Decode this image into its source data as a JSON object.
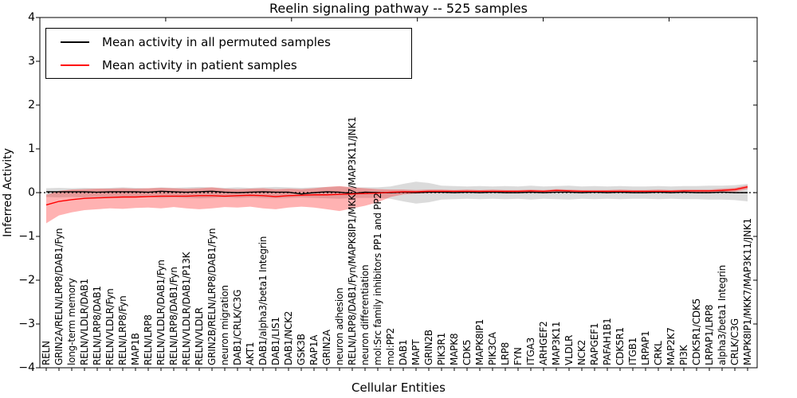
{
  "figure": {
    "title": "Reelin signaling pathway -- 525 samples",
    "xlabel": "Cellular Entities",
    "ylabel": "Inferred Activity"
  },
  "legend": {
    "entries": [
      {
        "label": "Mean activity in all permuted samples",
        "color": "#000000"
      },
      {
        "label": "Mean activity in patient samples",
        "color": "#ff0000"
      }
    ]
  },
  "chart_data": {
    "type": "line",
    "title": "Reelin signaling pathway -- 525 samples",
    "xlabel": "Cellular Entities",
    "ylabel": "Inferred Activity",
    "ylim": [
      -4,
      4
    ],
    "ytick_labels": [
      "4",
      "3",
      "2",
      "1",
      "0",
      "−1",
      "−2",
      "−3",
      "−4"
    ],
    "ytick_values": [
      4,
      3,
      2,
      1,
      0,
      -1,
      -2,
      -3,
      -4
    ],
    "grid": false,
    "legend_position": "upper left",
    "zero_line": true,
    "categories": [
      "RELN",
      "GRIN2A/RELN/LRP8/DAB1/Fyn",
      "long-term memory",
      "RELN/VLDLR/DAB1",
      "RELN/LRP8/DAB1",
      "RELN/VLDLR/Fyn",
      "RELN/LRP8/Fyn",
      "MAP1B",
      "RELN/LRP8",
      "RELN/VLDLR/DAB1/Fyn",
      "RELN/LRP8/DAB1/Fyn",
      "RELN/VLDLR/DAB1/P13K",
      "RELN/VLDLR",
      "GRIN2B/RELN/LRP8/DAB1/Fyn",
      "neuron migration",
      "DAB1/CRLK/C3G",
      "AKT1",
      "DAB1/alpha3/beta1 Integrin",
      "DAB1/LIS1",
      "DAB1/NCK2",
      "GSK3B",
      "RAP1A",
      "GRIN2A",
      "neuron adhesion",
      "RELN/LRP8/DAB1/Fyn/MAPK8IP1/MKK7/MAP3K11/JNK1",
      "neuron differentiation",
      "mol:Src family inhibitors PP1 and PP2",
      "mol:PP2",
      "DAB1",
      "MAPT",
      "GRIN2B",
      "PIK3R1",
      "MAPK8",
      "CDK5",
      "MAPK8IP1",
      "PIK3CA",
      "LRP8",
      "FYN",
      "ITGA3",
      "ARHGEF2",
      "MAP3K11",
      "VLDLR",
      "NCK2",
      "RAPGEF1",
      "PAFAH1B1",
      "CDK5R1",
      "ITGB1",
      "LRPAP1",
      "CRKL",
      "MAP2K7",
      "PI3K",
      "CDK5R1/CDK5",
      "LRPAP1/LRP8",
      "alpha3/beta1 Integrin",
      "CRLK/C3G",
      "MAPK8IP1/MKK7/MAP3K11/JNK1"
    ],
    "series": [
      {
        "name": "Mean activity in all permuted samples",
        "color": "#000000",
        "band_color": "rgba(125,125,125,0.28)",
        "values": [
          0.02,
          0.02,
          0.02,
          0.02,
          0.01,
          0.02,
          0.02,
          0.02,
          0.01,
          0.03,
          0.02,
          0.01,
          0.02,
          0.03,
          0.01,
          0.0,
          0.01,
          0.02,
          0.01,
          0.01,
          -0.03,
          0.0,
          0.02,
          0.01,
          -0.02,
          0.01,
          0.0,
          0.0,
          0.01,
          0.0,
          0.01,
          0.01,
          0.0,
          0.01,
          0.0,
          0.01,
          0.0,
          0.0,
          0.01,
          0.0,
          0.01,
          0.01,
          0.0,
          0.01,
          0.0,
          0.01,
          0.0,
          0.0,
          0.01,
          0.0,
          0.01,
          0.0,
          0.0,
          0.01,
          0.0,
          0.0
        ],
        "band_upper": [
          0.1,
          0.11,
          0.1,
          0.11,
          0.1,
          0.11,
          0.12,
          0.11,
          0.1,
          0.12,
          0.11,
          0.12,
          0.13,
          0.12,
          0.11,
          0.12,
          0.11,
          0.12,
          0.13,
          0.12,
          0.11,
          0.12,
          0.13,
          0.14,
          0.12,
          0.12,
          0.12,
          0.14,
          0.2,
          0.25,
          0.22,
          0.16,
          0.15,
          0.14,
          0.15,
          0.14,
          0.15,
          0.14,
          0.16,
          0.14,
          0.15,
          0.16,
          0.14,
          0.15,
          0.14,
          0.15,
          0.14,
          0.14,
          0.15,
          0.14,
          0.15,
          0.15,
          0.16,
          0.16,
          0.17,
          0.2
        ],
        "band_lower": [
          -0.1,
          -0.11,
          -0.1,
          -0.11,
          -0.1,
          -0.11,
          -0.12,
          -0.11,
          -0.1,
          -0.12,
          -0.11,
          -0.12,
          -0.13,
          -0.12,
          -0.11,
          -0.12,
          -0.11,
          -0.12,
          -0.13,
          -0.12,
          -0.11,
          -0.12,
          -0.13,
          -0.14,
          -0.12,
          -0.12,
          -0.12,
          -0.14,
          -0.2,
          -0.25,
          -0.22,
          -0.16,
          -0.15,
          -0.14,
          -0.15,
          -0.14,
          -0.15,
          -0.14,
          -0.16,
          -0.14,
          -0.15,
          -0.16,
          -0.14,
          -0.15,
          -0.14,
          -0.15,
          -0.14,
          -0.14,
          -0.15,
          -0.14,
          -0.15,
          -0.15,
          -0.16,
          -0.16,
          -0.17,
          -0.2
        ]
      },
      {
        "name": "Mean activity in patient samples",
        "color": "#ff0000",
        "band_color": "rgba(255,0,0,0.3)",
        "values": [
          -0.28,
          -0.2,
          -0.16,
          -0.13,
          -0.12,
          -0.11,
          -0.1,
          -0.1,
          -0.09,
          -0.08,
          -0.08,
          -0.08,
          -0.07,
          -0.07,
          -0.08,
          -0.07,
          -0.06,
          -0.07,
          -0.09,
          -0.07,
          -0.06,
          -0.05,
          -0.05,
          -0.04,
          -0.03,
          -0.02,
          -0.01,
          0.01,
          0.02,
          0.02,
          0.03,
          0.03,
          0.03,
          0.03,
          0.03,
          0.03,
          0.03,
          0.03,
          0.04,
          0.03,
          0.05,
          0.04,
          0.03,
          0.03,
          0.03,
          0.03,
          0.03,
          0.03,
          0.03,
          0.03,
          0.04,
          0.04,
          0.04,
          0.05,
          0.07,
          0.13
        ],
        "band_upper": [
          -0.05,
          0.04,
          0.07,
          0.08,
          0.09,
          0.09,
          0.1,
          0.09,
          0.1,
          0.11,
          0.1,
          0.09,
          0.1,
          0.12,
          0.09,
          0.08,
          0.09,
          0.1,
          0.08,
          0.09,
          0.08,
          0.1,
          0.13,
          0.15,
          0.12,
          0.1,
          0.08,
          0.07,
          0.07,
          0.06,
          0.07,
          0.07,
          0.06,
          0.07,
          0.06,
          0.07,
          0.06,
          0.06,
          0.07,
          0.06,
          0.08,
          0.07,
          0.06,
          0.06,
          0.06,
          0.07,
          0.06,
          0.06,
          0.07,
          0.06,
          0.07,
          0.07,
          0.07,
          0.09,
          0.11,
          0.17
        ],
        "band_lower": [
          -0.7,
          -0.52,
          -0.45,
          -0.4,
          -0.38,
          -0.36,
          -0.37,
          -0.35,
          -0.34,
          -0.36,
          -0.33,
          -0.36,
          -0.38,
          -0.36,
          -0.33,
          -0.34,
          -0.32,
          -0.36,
          -0.38,
          -0.34,
          -0.32,
          -0.34,
          -0.38,
          -0.42,
          -0.36,
          -0.3,
          -0.22,
          -0.1,
          -0.04,
          -0.02,
          -0.01,
          -0.01,
          0.0,
          0.0,
          0.0,
          0.0,
          0.0,
          0.0,
          0.01,
          0.0,
          0.01,
          0.01,
          0.0,
          0.0,
          0.0,
          0.0,
          0.0,
          0.0,
          0.0,
          0.0,
          0.01,
          0.01,
          0.01,
          0.01,
          0.02,
          0.08
        ]
      }
    ],
    "xlim": [
      0,
      57
    ],
    "top_xticks": [
      10,
      20,
      30,
      40,
      50
    ]
  }
}
